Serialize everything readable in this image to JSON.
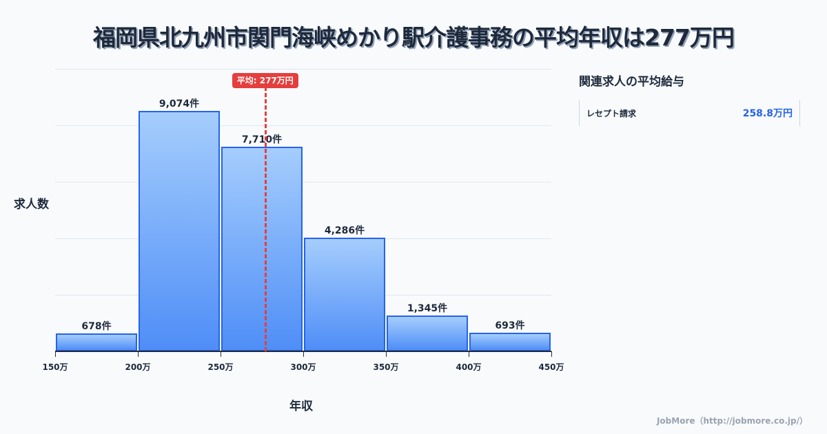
{
  "title": "福岡県北九州市関門海峡めかり駅介護事務の平均年収は277万円",
  "chart_data": {
    "type": "bar",
    "title": "福岡県北九州市関門海峡めかり駅介護事務の平均年収は277万円",
    "xlabel": "年収",
    "ylabel": "求人数",
    "bins": [
      {
        "from": 150,
        "to": 200,
        "value": 678,
        "label": "678件"
      },
      {
        "from": 200,
        "to": 250,
        "value": 9074,
        "label": "9,074件"
      },
      {
        "from": 250,
        "to": 300,
        "value": 7710,
        "label": "7,710件"
      },
      {
        "from": 300,
        "to": 350,
        "value": 4286,
        "label": "4,286件"
      },
      {
        "from": 350,
        "to": 400,
        "value": 1345,
        "label": "1,345件"
      },
      {
        "from": 400,
        "to": 450,
        "value": 693,
        "label": "693件"
      }
    ],
    "categories": [
      "150万-200万",
      "200万-250万",
      "250万-300万",
      "300万-350万",
      "350万-400万",
      "400万-450万"
    ],
    "values": [
      678,
      9074,
      7710,
      4286,
      1345,
      693
    ],
    "x_ticks": [
      "150万",
      "200万",
      "250万",
      "300万",
      "350万",
      "400万",
      "450万"
    ],
    "xlim": [
      150,
      450
    ],
    "ylim": [
      0,
      10660
    ],
    "grid": true,
    "mean": {
      "value": 277,
      "label": "平均: 277万円",
      "color": "#e53e3e"
    },
    "bar_color": "#4f8ef7",
    "bar_border_color": "#2563eb"
  },
  "sidebar": {
    "title": "関連求人の平均給与",
    "items": [
      {
        "label": "レセプト請求",
        "value": "258.8万円"
      }
    ]
  },
  "footer": "JobMore（http://jobmore.co.jp/）"
}
